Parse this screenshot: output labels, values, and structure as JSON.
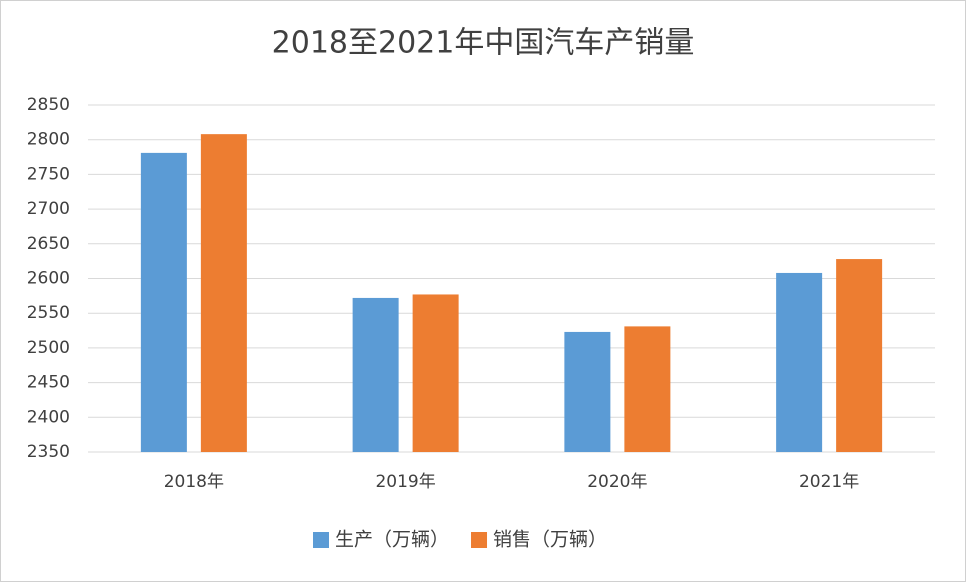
{
  "chart_data": {
    "type": "bar",
    "title": "2018至2021年中国汽车产销量",
    "categories": [
      "2018年",
      "2019年",
      "2020年",
      "2021年"
    ],
    "series": [
      {
        "name": "生产（万辆）",
        "color": "#5b9bd5",
        "values": [
          2781,
          2572,
          2523,
          2608
        ]
      },
      {
        "name": "销售（万辆）",
        "color": "#ed7d31",
        "values": [
          2808,
          2577,
          2531,
          2628
        ]
      }
    ],
    "ylim": [
      2350,
      2850
    ],
    "yticks": [
      2350,
      2400,
      2450,
      2500,
      2550,
      2600,
      2650,
      2700,
      2750,
      2800,
      2850
    ],
    "grid": true,
    "legend": "bottom"
  }
}
